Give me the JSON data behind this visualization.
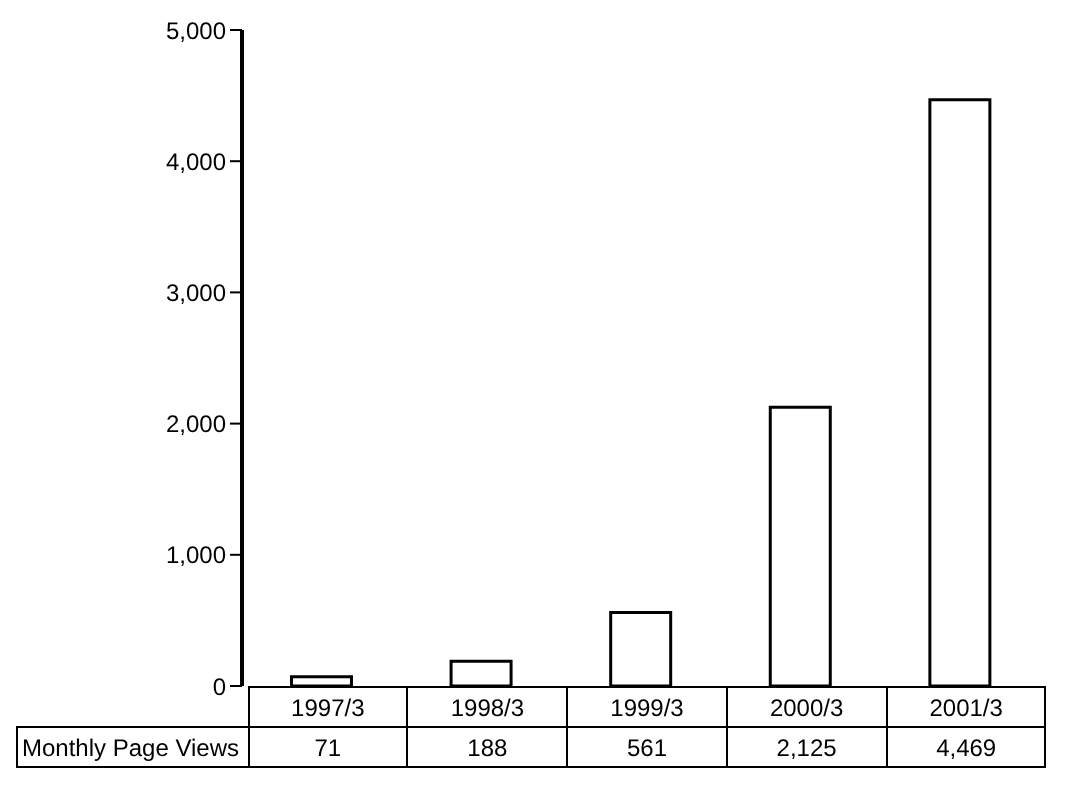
{
  "chart_data": {
    "type": "bar",
    "categories": [
      "1997/3",
      "1998/3",
      "1999/3",
      "2000/3",
      "2001/3"
    ],
    "series": [
      {
        "name": "Monthly Page Views",
        "color": "#ffffff",
        "values": [
          71,
          188,
          561,
          2125,
          4469
        ],
        "value_labels": [
          "71",
          "188",
          "561",
          "2,125",
          "4,469"
        ]
      }
    ],
    "ylim": [
      0,
      5000
    ],
    "yticks": [
      0,
      {
        "value": 1000,
        "label": "1,000"
      },
      {
        "value": 2000,
        "label": "2,000"
      },
      {
        "value": 3000,
        "label": "3,000"
      },
      {
        "value": 4000,
        "label": "4,000"
      },
      {
        "value": 5000,
        "label": "5,000"
      }
    ],
    "grid": false,
    "legend": false
  }
}
